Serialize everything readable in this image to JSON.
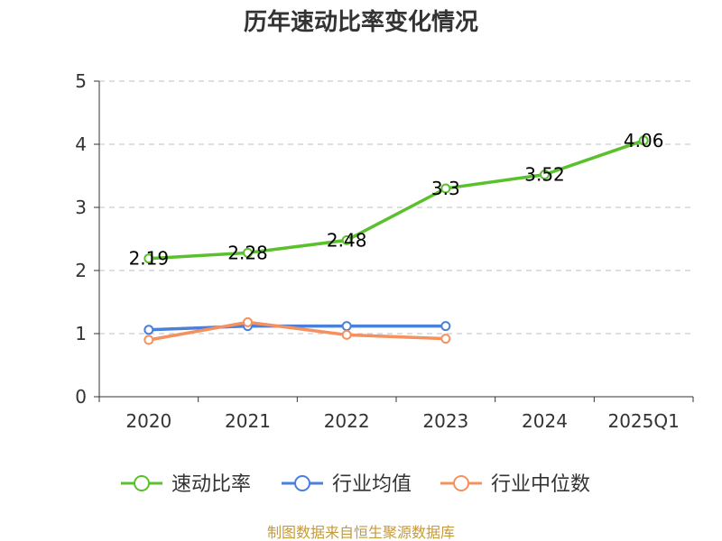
{
  "chart_data": {
    "type": "line",
    "title": "历年速动比率变化情况",
    "categories": [
      "2020",
      "2021",
      "2022",
      "2023",
      "2024",
      "2025Q1"
    ],
    "y_ticks": [
      "0",
      "1",
      "2",
      "3",
      "4",
      "5"
    ],
    "ylim": [
      0,
      5
    ],
    "grid": true,
    "legend_position": "bottom",
    "series": [
      {
        "name": "速动比率",
        "color": "#5ac12c",
        "values": [
          2.19,
          2.28,
          2.48,
          3.3,
          3.52,
          4.06
        ],
        "labels": [
          "2.19",
          "2.28",
          "2.48",
          "3.3",
          "3.52",
          "4.06"
        ]
      },
      {
        "name": "行业均值",
        "color": "#4a7fdb",
        "values": [
          1.06,
          1.12,
          1.12,
          1.12,
          null,
          null
        ]
      },
      {
        "name": "行业中位数",
        "color": "#f4915d",
        "values": [
          0.9,
          1.18,
          0.98,
          0.92,
          null,
          null
        ]
      }
    ],
    "source": "制图数据来自恒生聚源数据库"
  }
}
